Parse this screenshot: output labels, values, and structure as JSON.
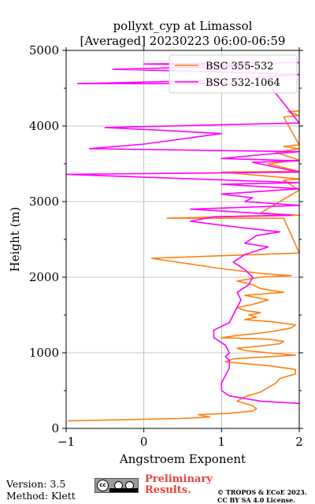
{
  "chart_data": {
    "type": "line",
    "title": [
      "pollyxt_cyp at Limassol",
      "[Averaged] 20230223 06:00-06:59"
    ],
    "xlabel": "Angstroem Exponent",
    "ylabel": "Height (m)",
    "xlim": [
      -1,
      2
    ],
    "ylim": [
      0,
      5000
    ],
    "xticks": [
      -1,
      0,
      1,
      2
    ],
    "yticks": [
      0,
      1000,
      2000,
      3000,
      4000,
      5000
    ],
    "grid": true,
    "legend_position": "top-right",
    "series": [
      {
        "name": "BSC 355-532",
        "color": "#ff7f0e",
        "points": [
          [
            -0.98,
            100
          ],
          [
            0.45,
            130
          ],
          [
            0.85,
            150
          ],
          [
            0.7,
            180
          ],
          [
            1.1,
            200
          ],
          [
            1.4,
            230
          ],
          [
            1.45,
            260
          ],
          [
            1.4,
            300
          ],
          [
            1.2,
            360
          ],
          [
            1.3,
            420
          ],
          [
            1.5,
            480
          ],
          [
            1.6,
            540
          ],
          [
            1.7,
            600
          ],
          [
            1.75,
            660
          ],
          [
            1.95,
            720
          ],
          [
            1.95,
            780
          ],
          [
            1.6,
            830
          ],
          [
            1.05,
            880
          ],
          [
            1.15,
            920
          ],
          [
            1.95,
            970
          ],
          [
            1.6,
            1000
          ],
          [
            1.3,
            1030
          ],
          [
            1.2,
            1060
          ],
          [
            1.5,
            1090
          ],
          [
            1.75,
            1120
          ],
          [
            1.8,
            1150
          ],
          [
            1.6,
            1180
          ],
          [
            1.0,
            1200
          ],
          [
            1.2,
            1230
          ],
          [
            1.5,
            1260
          ],
          [
            1.7,
            1290
          ],
          [
            1.9,
            1330
          ],
          [
            1.95,
            1370
          ],
          [
            1.65,
            1410
          ],
          [
            1.3,
            1440
          ],
          [
            1.45,
            1470
          ],
          [
            1.35,
            1500
          ],
          [
            1.5,
            1530
          ],
          [
            1.3,
            1560
          ],
          [
            1.2,
            1600
          ],
          [
            1.4,
            1640
          ],
          [
            1.6,
            1700
          ],
          [
            1.3,
            1760
          ],
          [
            1.8,
            1800
          ],
          [
            1.5,
            1850
          ],
          [
            1.4,
            1900
          ],
          [
            1.2,
            1950
          ],
          [
            1.5,
            2000
          ],
          [
            1.9,
            2020
          ],
          [
            1.5,
            2050
          ],
          [
            0.95,
            2120
          ],
          [
            0.1,
            2250
          ],
          [
            0.9,
            2280
          ],
          [
            2.0,
            2320
          ],
          [
            1.8,
            2780
          ],
          [
            0.3,
            2780
          ],
          [
            1.1,
            2800
          ],
          [
            2.0,
            2820
          ],
          [
            1.5,
            2850
          ],
          [
            2.0,
            3150
          ],
          [
            1.8,
            3280
          ],
          [
            2.0,
            3300
          ],
          [
            1.0,
            3390
          ],
          [
            2.0,
            3400
          ],
          [
            1.6,
            3500
          ],
          [
            2.0,
            3550
          ],
          [
            1.7,
            3650
          ],
          [
            2.0,
            3700
          ],
          [
            1.8,
            3730
          ],
          [
            2.0,
            3750
          ],
          [
            1.8,
            4120
          ],
          [
            2.0,
            4140
          ],
          [
            1.85,
            4190
          ],
          [
            2.0,
            4200
          ]
        ]
      },
      {
        "name": "BSC 532-1064",
        "color": "#ff00ff",
        "points": [
          [
            2.0,
            330
          ],
          [
            1.5,
            360
          ],
          [
            1.1,
            430
          ],
          [
            1.0,
            500
          ],
          [
            1.0,
            600
          ],
          [
            1.05,
            700
          ],
          [
            1.1,
            800
          ],
          [
            1.1,
            900
          ],
          [
            1.05,
            950
          ],
          [
            1.1,
            1000
          ],
          [
            1.05,
            1100
          ],
          [
            0.9,
            1200
          ],
          [
            0.9,
            1300
          ],
          [
            1.1,
            1400
          ],
          [
            1.15,
            1500
          ],
          [
            1.2,
            1600
          ],
          [
            1.25,
            1700
          ],
          [
            1.2,
            1800
          ],
          [
            1.35,
            1900
          ],
          [
            1.4,
            2000
          ],
          [
            1.3,
            2100
          ],
          [
            1.15,
            2200
          ],
          [
            1.3,
            2300
          ],
          [
            1.6,
            2400
          ],
          [
            1.3,
            2450
          ],
          [
            1.45,
            2550
          ],
          [
            1.75,
            2600
          ],
          [
            1.3,
            2650
          ],
          [
            0.6,
            2740
          ],
          [
            0.9,
            2800
          ],
          [
            1.9,
            2820
          ],
          [
            0.6,
            2900
          ],
          [
            2.0,
            2950
          ],
          [
            1.3,
            3000
          ],
          [
            1.4,
            3050
          ],
          [
            1.0,
            3100
          ],
          [
            2.0,
            3170
          ],
          [
            1.0,
            3230
          ],
          [
            2.0,
            3250
          ],
          [
            -1.0,
            3360
          ],
          [
            2.0,
            3390
          ],
          [
            1.4,
            3520
          ],
          [
            2.0,
            3540
          ],
          [
            1.0,
            3570
          ],
          [
            1.5,
            3620
          ],
          [
            2.0,
            3660
          ],
          [
            -0.7,
            3700
          ],
          [
            0.0,
            3760
          ],
          [
            1.0,
            3900
          ],
          [
            0.3,
            3940
          ],
          [
            -0.5,
            3980
          ],
          [
            2.0,
            4040
          ],
          [
            1.6,
            4560
          ],
          [
            -0.85,
            4560
          ],
          [
            0.8,
            4600
          ],
          [
            2.0,
            4680
          ],
          [
            1.5,
            4700
          ],
          [
            -0.4,
            4750
          ],
          [
            1.5,
            4800
          ],
          [
            0.0,
            4820
          ],
          [
            2.0,
            4840
          ]
        ]
      }
    ]
  },
  "footer": {
    "version": "Version: 3.5",
    "method": "Method: Klett",
    "license_badge_text": "cc",
    "preliminary": [
      "Preliminary",
      "Results."
    ],
    "copyright": [
      "© TROPOS & ECoE 2023.",
      "CC BY SA 4.0 License."
    ]
  }
}
